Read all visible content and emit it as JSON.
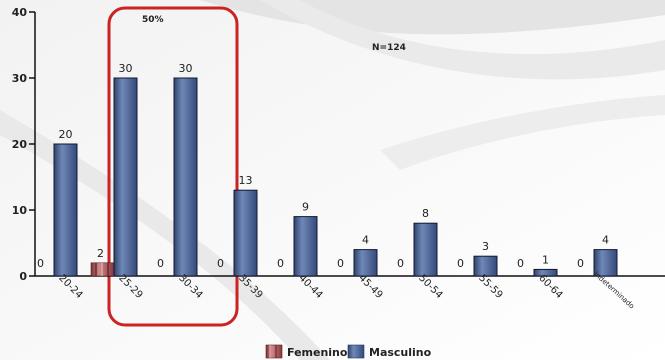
{
  "chart_data": {
    "type": "bar",
    "categories": [
      "20-24",
      "25-29",
      "30-34",
      "35-39",
      "40-44",
      "45-49",
      "50-54",
      "55-59",
      "60-64",
      "Indeterminado"
    ],
    "series": [
      {
        "name": "Femenino",
        "values": [
          0,
          2,
          0,
          0,
          0,
          0,
          0,
          0,
          0,
          0
        ],
        "color": "#a0474a"
      },
      {
        "name": "Masculino",
        "values": [
          20,
          30,
          30,
          13,
          9,
          4,
          8,
          3,
          1,
          4
        ],
        "color": "#4a6290"
      }
    ],
    "ylim": [
      0,
      40
    ],
    "yticks": [
      0,
      10,
      20,
      30,
      40
    ],
    "annotations": [
      {
        "text": "50%"
      },
      {
        "text": "N=124"
      }
    ],
    "highlight": {
      "categories": [
        "25-29",
        "30-34"
      ],
      "color": "#cc2222"
    },
    "legend_position": "bottom-center",
    "grid": false
  }
}
